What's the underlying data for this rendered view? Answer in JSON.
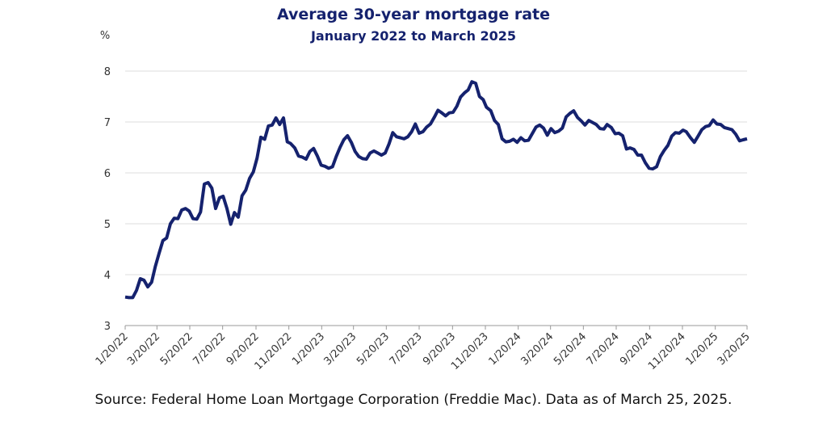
{
  "chart_data": {
    "type": "line",
    "title": "Average 30-year mortgage rate",
    "subtitle": "January 2022 to March 2025",
    "ylabel": "%",
    "source": "Source: Federal Home Loan Mortgage Corporation (Freddie Mac). Data as of March 25, 2025.",
    "x": [
      "1/20/22",
      "1/27/22",
      "2/3/22",
      "2/10/22",
      "2/17/22",
      "2/24/22",
      "3/3/22",
      "3/10/22",
      "3/17/22",
      "3/24/22",
      "3/31/22",
      "4/7/22",
      "4/14/22",
      "4/21/22",
      "4/28/22",
      "5/5/22",
      "5/12/22",
      "5/19/22",
      "5/26/22",
      "6/2/22",
      "6/9/22",
      "6/16/22",
      "6/23/22",
      "6/30/22",
      "7/7/22",
      "7/14/22",
      "7/21/22",
      "7/28/22",
      "8/4/22",
      "8/11/22",
      "8/18/22",
      "8/25/22",
      "9/1/22",
      "9/8/22",
      "9/15/22",
      "9/22/22",
      "9/29/22",
      "10/6/22",
      "10/13/22",
      "10/20/22",
      "10/27/22",
      "11/3/22",
      "11/10/22",
      "11/17/22",
      "11/23/22",
      "12/1/22",
      "12/8/22",
      "12/15/22",
      "12/22/22",
      "12/29/22",
      "1/5/23",
      "1/12/23",
      "1/19/23",
      "1/26/23",
      "2/2/23",
      "2/9/23",
      "2/16/23",
      "2/23/23",
      "3/2/23",
      "3/9/23",
      "3/16/23",
      "3/23/23",
      "3/30/23",
      "4/6/23",
      "4/13/23",
      "4/20/23",
      "4/27/23",
      "5/4/23",
      "5/11/23",
      "5/18/23",
      "5/25/23",
      "6/1/23",
      "6/8/23",
      "6/15/23",
      "6/22/23",
      "6/29/23",
      "7/6/23",
      "7/13/23",
      "7/20/23",
      "7/27/23",
      "8/3/23",
      "8/10/23",
      "8/17/23",
      "8/24/23",
      "8/31/23",
      "9/7/23",
      "9/14/23",
      "9/21/23",
      "9/28/23",
      "10/5/23",
      "10/12/23",
      "10/19/23",
      "10/26/23",
      "11/2/23",
      "11/9/23",
      "11/16/23",
      "11/22/23",
      "11/30/23",
      "12/7/23",
      "12/14/23",
      "12/21/23",
      "12/28/23",
      "1/4/24",
      "1/11/24",
      "1/18/24",
      "1/25/24",
      "2/1/24",
      "2/8/24",
      "2/15/24",
      "2/22/24",
      "2/29/24",
      "3/7/24",
      "3/14/24",
      "3/21/24",
      "3/28/24",
      "4/4/24",
      "4/11/24",
      "4/18/24",
      "4/25/24",
      "5/2/24",
      "5/9/24",
      "5/16/24",
      "5/23/24",
      "5/30/24",
      "6/6/24",
      "6/13/24",
      "6/20/24",
      "6/27/24",
      "7/3/24",
      "7/11/24",
      "7/18/24",
      "7/25/24",
      "8/1/24",
      "8/8/24",
      "8/15/24",
      "8/22/24",
      "8/29/24",
      "9/5/24",
      "9/12/24",
      "9/19/24",
      "9/26/24",
      "10/3/24",
      "10/10/24",
      "10/17/24",
      "10/24/24",
      "10/31/24",
      "11/7/24",
      "11/14/24",
      "11/21/24",
      "11/27/24",
      "12/5/24",
      "12/12/24",
      "12/19/24",
      "12/26/24",
      "1/2/25",
      "1/9/25",
      "1/16/25",
      "1/23/25",
      "1/30/25",
      "2/6/25",
      "2/13/25",
      "2/20/25",
      "2/27/25",
      "3/6/25",
      "3/13/25",
      "3/20/25"
    ],
    "series": [
      {
        "name": "Average 30-year mortgage rate",
        "color": "#15226e",
        "values": [
          3.56,
          3.55,
          3.55,
          3.69,
          3.92,
          3.89,
          3.76,
          3.85,
          4.16,
          4.42,
          4.67,
          4.72,
          5.0,
          5.11,
          5.1,
          5.27,
          5.3,
          5.25,
          5.1,
          5.09,
          5.23,
          5.78,
          5.81,
          5.7,
          5.3,
          5.51,
          5.54,
          5.3,
          4.99,
          5.22,
          5.13,
          5.55,
          5.66,
          5.89,
          6.02,
          6.29,
          6.7,
          6.66,
          6.92,
          6.94,
          7.08,
          6.95,
          7.08,
          6.61,
          6.58,
          6.49,
          6.33,
          6.31,
          6.27,
          6.42,
          6.48,
          6.33,
          6.15,
          6.13,
          6.09,
          6.12,
          6.32,
          6.5,
          6.65,
          6.73,
          6.6,
          6.42,
          6.32,
          6.28,
          6.27,
          6.39,
          6.43,
          6.39,
          6.35,
          6.39,
          6.57,
          6.79,
          6.71,
          6.69,
          6.67,
          6.71,
          6.81,
          6.96,
          6.78,
          6.81,
          6.9,
          6.96,
          7.09,
          7.23,
          7.18,
          7.12,
          7.18,
          7.19,
          7.31,
          7.49,
          7.57,
          7.63,
          7.79,
          7.76,
          7.5,
          7.44,
          7.29,
          7.22,
          7.03,
          6.95,
          6.67,
          6.61,
          6.62,
          6.66,
          6.6,
          6.69,
          6.63,
          6.64,
          6.77,
          6.9,
          6.94,
          6.88,
          6.74,
          6.87,
          6.79,
          6.82,
          6.88,
          7.1,
          7.17,
          7.22,
          7.09,
          7.02,
          6.94,
          7.03,
          6.99,
          6.95,
          6.87,
          6.86,
          6.95,
          6.89,
          6.77,
          6.78,
          6.73,
          6.47,
          6.49,
          6.46,
          6.35,
          6.35,
          6.2,
          6.09,
          6.08,
          6.12,
          6.32,
          6.44,
          6.54,
          6.72,
          6.79,
          6.78,
          6.84,
          6.81,
          6.69,
          6.6,
          6.72,
          6.85,
          6.91,
          6.93,
          7.04,
          6.96,
          6.95,
          6.89,
          6.87,
          6.85,
          6.76,
          6.63,
          6.65,
          6.67
        ]
      }
    ],
    "xlim": [
      "1/20/22",
      "3/20/25"
    ],
    "xticks": [
      "1/20/22",
      "3/20/22",
      "5/20/22",
      "7/20/22",
      "9/20/22",
      "11/20/22",
      "1/20/23",
      "3/20/23",
      "5/20/23",
      "7/20/23",
      "9/20/23",
      "11/20/23",
      "1/20/24",
      "3/20/24",
      "5/20/24",
      "7/20/24",
      "9/20/24",
      "11/20/24",
      "1/20/25",
      "3/20/25"
    ],
    "ylim": [
      3,
      8
    ],
    "yticks": [
      3,
      4,
      5,
      6,
      7,
      8
    ],
    "grid": true
  }
}
